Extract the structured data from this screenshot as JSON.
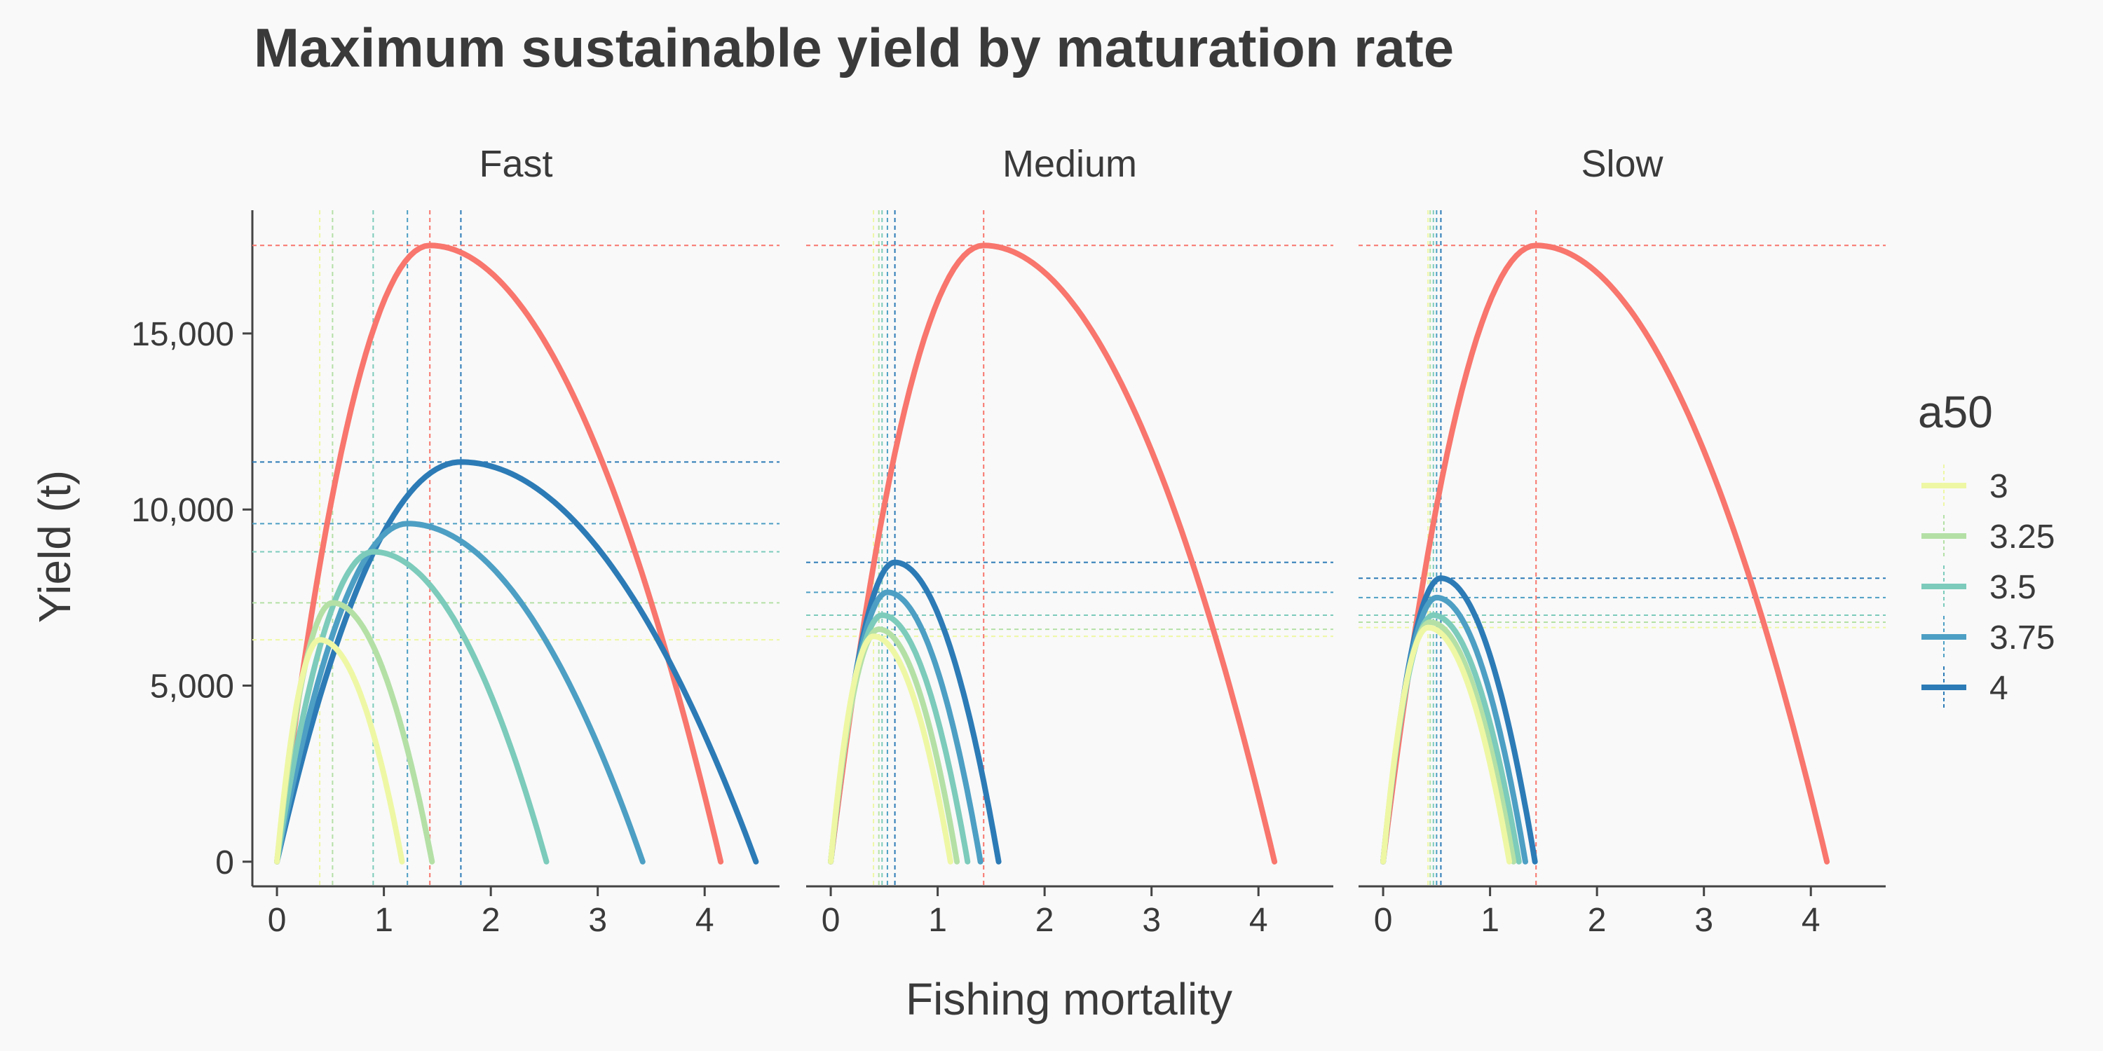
{
  "chart_data": {
    "type": "line",
    "title": "Maximum sustainable yield by maturation rate",
    "xlabel": "Fishing mortality",
    "ylabel": "Yield (t)",
    "xlim": [
      -0.23,
      4.7
    ],
    "ylim": [
      -700,
      18500
    ],
    "x_ticks": [
      0,
      1,
      2,
      3,
      4
    ],
    "y_ticks": [
      0,
      5000,
      10000,
      15000
    ],
    "y_tick_labels": [
      "0",
      "5,000",
      "10,000",
      "15,000"
    ],
    "grid": false,
    "legend": {
      "title": "a50",
      "placement": "right",
      "entries": [
        "3",
        "3.25",
        "3.5",
        "3.75",
        "4"
      ]
    },
    "colors": {
      "3": "#eef7a4",
      "3.25": "#b4e0a6",
      "3.5": "#7ccbbb",
      "3.75": "#4d9fc4",
      "4": "#2c7bb6",
      "reference": "#f8766d"
    },
    "panels": [
      {
        "name": "Fast",
        "reference": {
          "fmsy": 1.43,
          "msy": 17500,
          "fmax": 4.15
        },
        "series": [
          {
            "a50": "3",
            "fmsy": 0.4,
            "msy": 6300,
            "fmax": 1.17
          },
          {
            "a50": "3.25",
            "fmsy": 0.52,
            "msy": 7350,
            "fmax": 1.45
          },
          {
            "a50": "3.5",
            "fmsy": 0.9,
            "msy": 8800,
            "fmax": 2.52
          },
          {
            "a50": "3.75",
            "fmsy": 1.22,
            "msy": 9600,
            "fmax": 3.42
          },
          {
            "a50": "4",
            "fmsy": 1.72,
            "msy": 11350,
            "fmax": 4.48
          }
        ]
      },
      {
        "name": "Medium",
        "reference": {
          "fmsy": 1.43,
          "msy": 17500,
          "fmax": 4.15
        },
        "series": [
          {
            "a50": "3",
            "fmsy": 0.4,
            "msy": 6400,
            "fmax": 1.12
          },
          {
            "a50": "3.25",
            "fmsy": 0.45,
            "msy": 6600,
            "fmax": 1.18
          },
          {
            "a50": "3.5",
            "fmsy": 0.48,
            "msy": 7000,
            "fmax": 1.28
          },
          {
            "a50": "3.75",
            "fmsy": 0.53,
            "msy": 7650,
            "fmax": 1.4
          },
          {
            "a50": "4",
            "fmsy": 0.6,
            "msy": 8500,
            "fmax": 1.57
          }
        ]
      },
      {
        "name": "Slow",
        "reference": {
          "fmsy": 1.43,
          "msy": 17500,
          "fmax": 4.15
        },
        "series": [
          {
            "a50": "3",
            "fmsy": 0.42,
            "msy": 6650,
            "fmax": 1.18
          },
          {
            "a50": "3.25",
            "fmsy": 0.44,
            "msy": 6800,
            "fmax": 1.22
          },
          {
            "a50": "3.5",
            "fmsy": 0.47,
            "msy": 7000,
            "fmax": 1.27
          },
          {
            "a50": "3.75",
            "fmsy": 0.5,
            "msy": 7500,
            "fmax": 1.33
          },
          {
            "a50": "4",
            "fmsy": 0.54,
            "msy": 8050,
            "fmax": 1.42
          }
        ]
      }
    ]
  }
}
